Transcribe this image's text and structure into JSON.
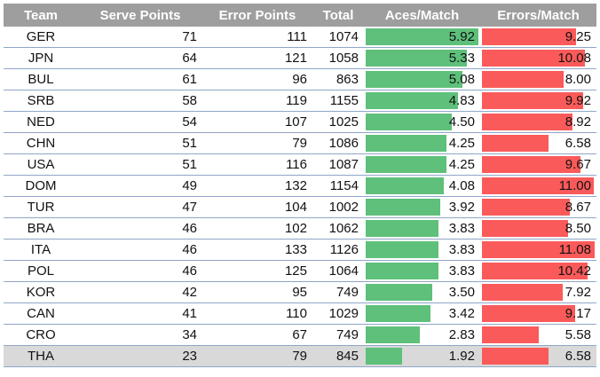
{
  "headers": [
    "Team",
    "Serve Points",
    "Error Points",
    "Total",
    "Aces/Match",
    "Errors/Match"
  ],
  "colors": {
    "aces": "#5ec07a",
    "errors": "#fa5a5a",
    "header": "#9e9e9e"
  },
  "max": {
    "aces": 5.92,
    "errors": 11.08
  },
  "rows": [
    {
      "team": "GER",
      "serve": "71",
      "error": "111",
      "total": "1074",
      "aces": "5.92",
      "errors": "9.25"
    },
    {
      "team": "JPN",
      "serve": "64",
      "error": "121",
      "total": "1058",
      "aces": "5.33",
      "errors": "10.08"
    },
    {
      "team": "BUL",
      "serve": "61",
      "error": "96",
      "total": "863",
      "aces": "5.08",
      "errors": "8.00"
    },
    {
      "team": "SRB",
      "serve": "58",
      "error": "119",
      "total": "1155",
      "aces": "4.83",
      "errors": "9.92"
    },
    {
      "team": "NED",
      "serve": "54",
      "error": "107",
      "total": "1025",
      "aces": "4.50",
      "errors": "8.92"
    },
    {
      "team": "CHN",
      "serve": "51",
      "error": "79",
      "total": "1086",
      "aces": "4.25",
      "errors": "6.58"
    },
    {
      "team": "USA",
      "serve": "51",
      "error": "116",
      "total": "1087",
      "aces": "4.25",
      "errors": "9.67"
    },
    {
      "team": "DOM",
      "serve": "49",
      "error": "132",
      "total": "1154",
      "aces": "4.08",
      "errors": "11.00"
    },
    {
      "team": "TUR",
      "serve": "47",
      "error": "104",
      "total": "1002",
      "aces": "3.92",
      "errors": "8.67"
    },
    {
      "team": "BRA",
      "serve": "46",
      "error": "102",
      "total": "1062",
      "aces": "3.83",
      "errors": "8.50"
    },
    {
      "team": "ITA",
      "serve": "46",
      "error": "133",
      "total": "1126",
      "aces": "3.83",
      "errors": "11.08"
    },
    {
      "team": "POL",
      "serve": "46",
      "error": "125",
      "total": "1064",
      "aces": "3.83",
      "errors": "10.42"
    },
    {
      "team": "KOR",
      "serve": "42",
      "error": "95",
      "total": "749",
      "aces": "3.50",
      "errors": "7.92"
    },
    {
      "team": "CAN",
      "serve": "41",
      "error": "110",
      "total": "1029",
      "aces": "3.42",
      "errors": "9.17"
    },
    {
      "team": "CRO",
      "serve": "34",
      "error": "67",
      "total": "749",
      "aces": "2.83",
      "errors": "5.58"
    },
    {
      "team": "THA",
      "serve": "23",
      "error": "79",
      "total": "845",
      "aces": "1.92",
      "errors": "6.58"
    }
  ]
}
